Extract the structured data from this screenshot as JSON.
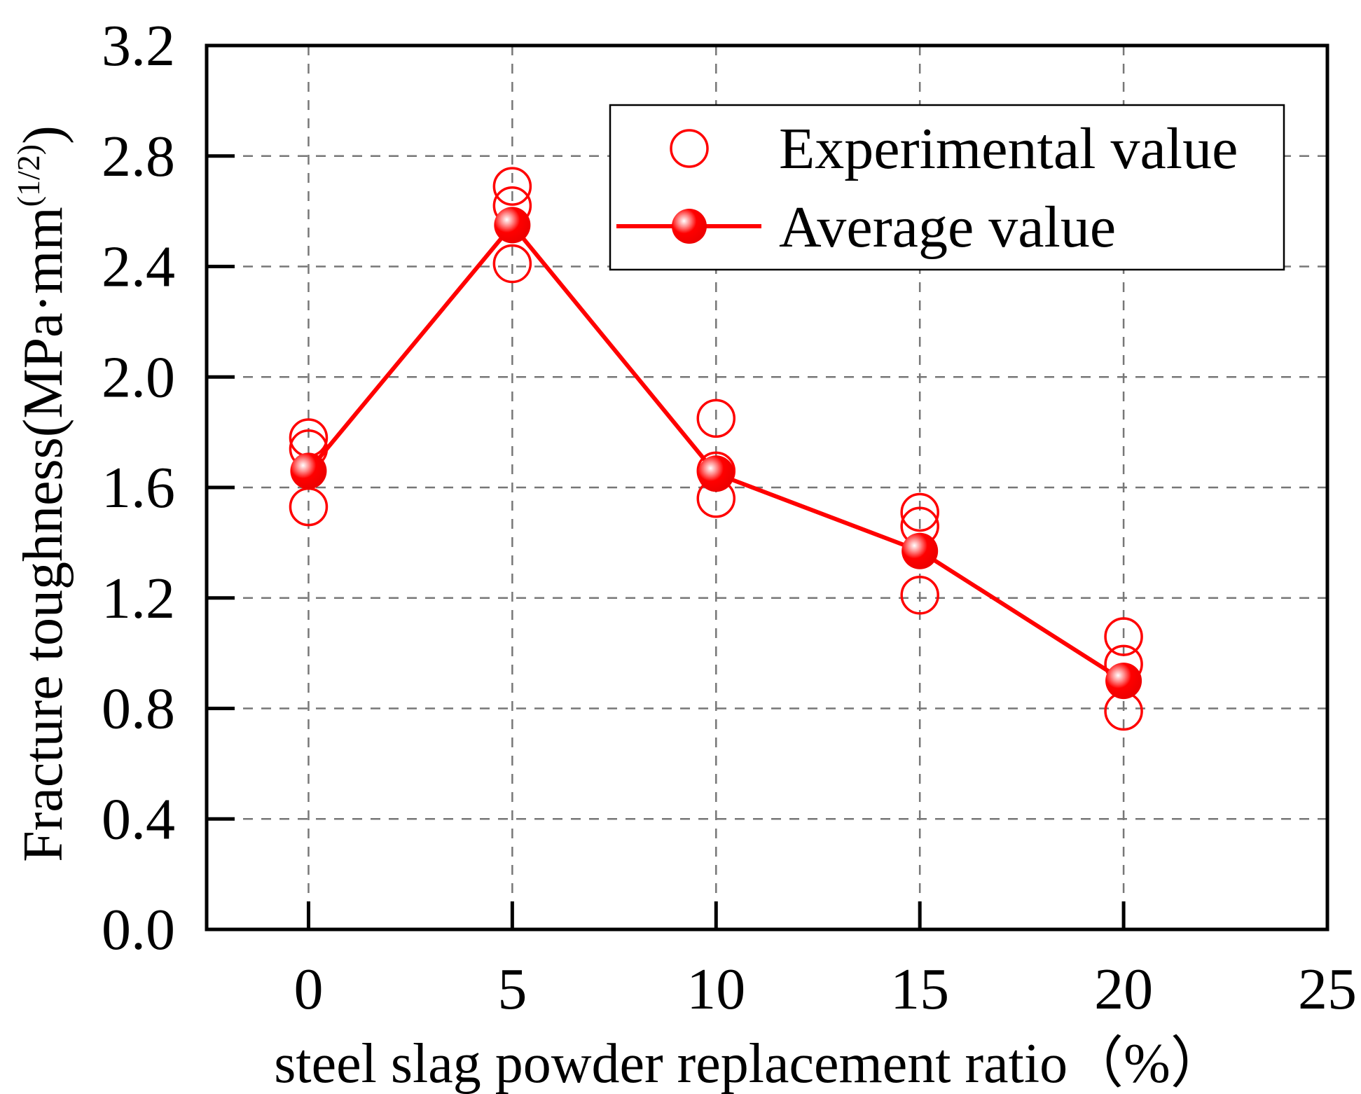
{
  "chart_data": {
    "type": "scatter",
    "title": "",
    "xlabel": "steel slag powder replacement ratio（%）",
    "ylabel": "Fracture toughness(MPa·mm",
    "ylabel_sup": "(1/2)",
    "ylabel_close": ")",
    "xlim": [
      -2.5,
      25
    ],
    "ylim": [
      0,
      3.2
    ],
    "xticks": [
      0,
      5,
      10,
      15,
      20,
      25
    ],
    "xtick_labels": [
      "0",
      "5",
      "10",
      "15",
      "20",
      "25"
    ],
    "yticks": [
      0,
      0.4,
      0.8,
      1.2,
      1.6,
      2.0,
      2.4,
      2.8,
      3.2
    ],
    "ytick_labels": [
      "0.0",
      "0.4",
      "0.8",
      "1.2",
      "1.6",
      "2.0",
      "2.4",
      "2.8",
      "3.2"
    ],
    "grid": true,
    "legend_position": "top-right",
    "series": [
      {
        "name": "Experimental value",
        "style": "open-circle",
        "color": "#ff0000",
        "points": [
          {
            "x": 0,
            "y": 1.78
          },
          {
            "x": 0,
            "y": 1.74
          },
          {
            "x": 0,
            "y": 1.53
          },
          {
            "x": 5,
            "y": 2.69
          },
          {
            "x": 5,
            "y": 2.62
          },
          {
            "x": 5,
            "y": 2.41
          },
          {
            "x": 10,
            "y": 1.85
          },
          {
            "x": 10,
            "y": 1.66
          },
          {
            "x": 10,
            "y": 1.56
          },
          {
            "x": 15,
            "y": 1.51
          },
          {
            "x": 15,
            "y": 1.46
          },
          {
            "x": 15,
            "y": 1.21
          },
          {
            "x": 20,
            "y": 1.06
          },
          {
            "x": 20,
            "y": 0.96
          },
          {
            "x": 20,
            "y": 0.79
          }
        ]
      },
      {
        "name": "Average value",
        "style": "line-filled-circle",
        "color": "#ff0000",
        "points": [
          {
            "x": 0,
            "y": 1.66
          },
          {
            "x": 5,
            "y": 2.55
          },
          {
            "x": 10,
            "y": 1.65
          },
          {
            "x": 15,
            "y": 1.37
          },
          {
            "x": 20,
            "y": 0.9
          }
        ]
      }
    ]
  }
}
